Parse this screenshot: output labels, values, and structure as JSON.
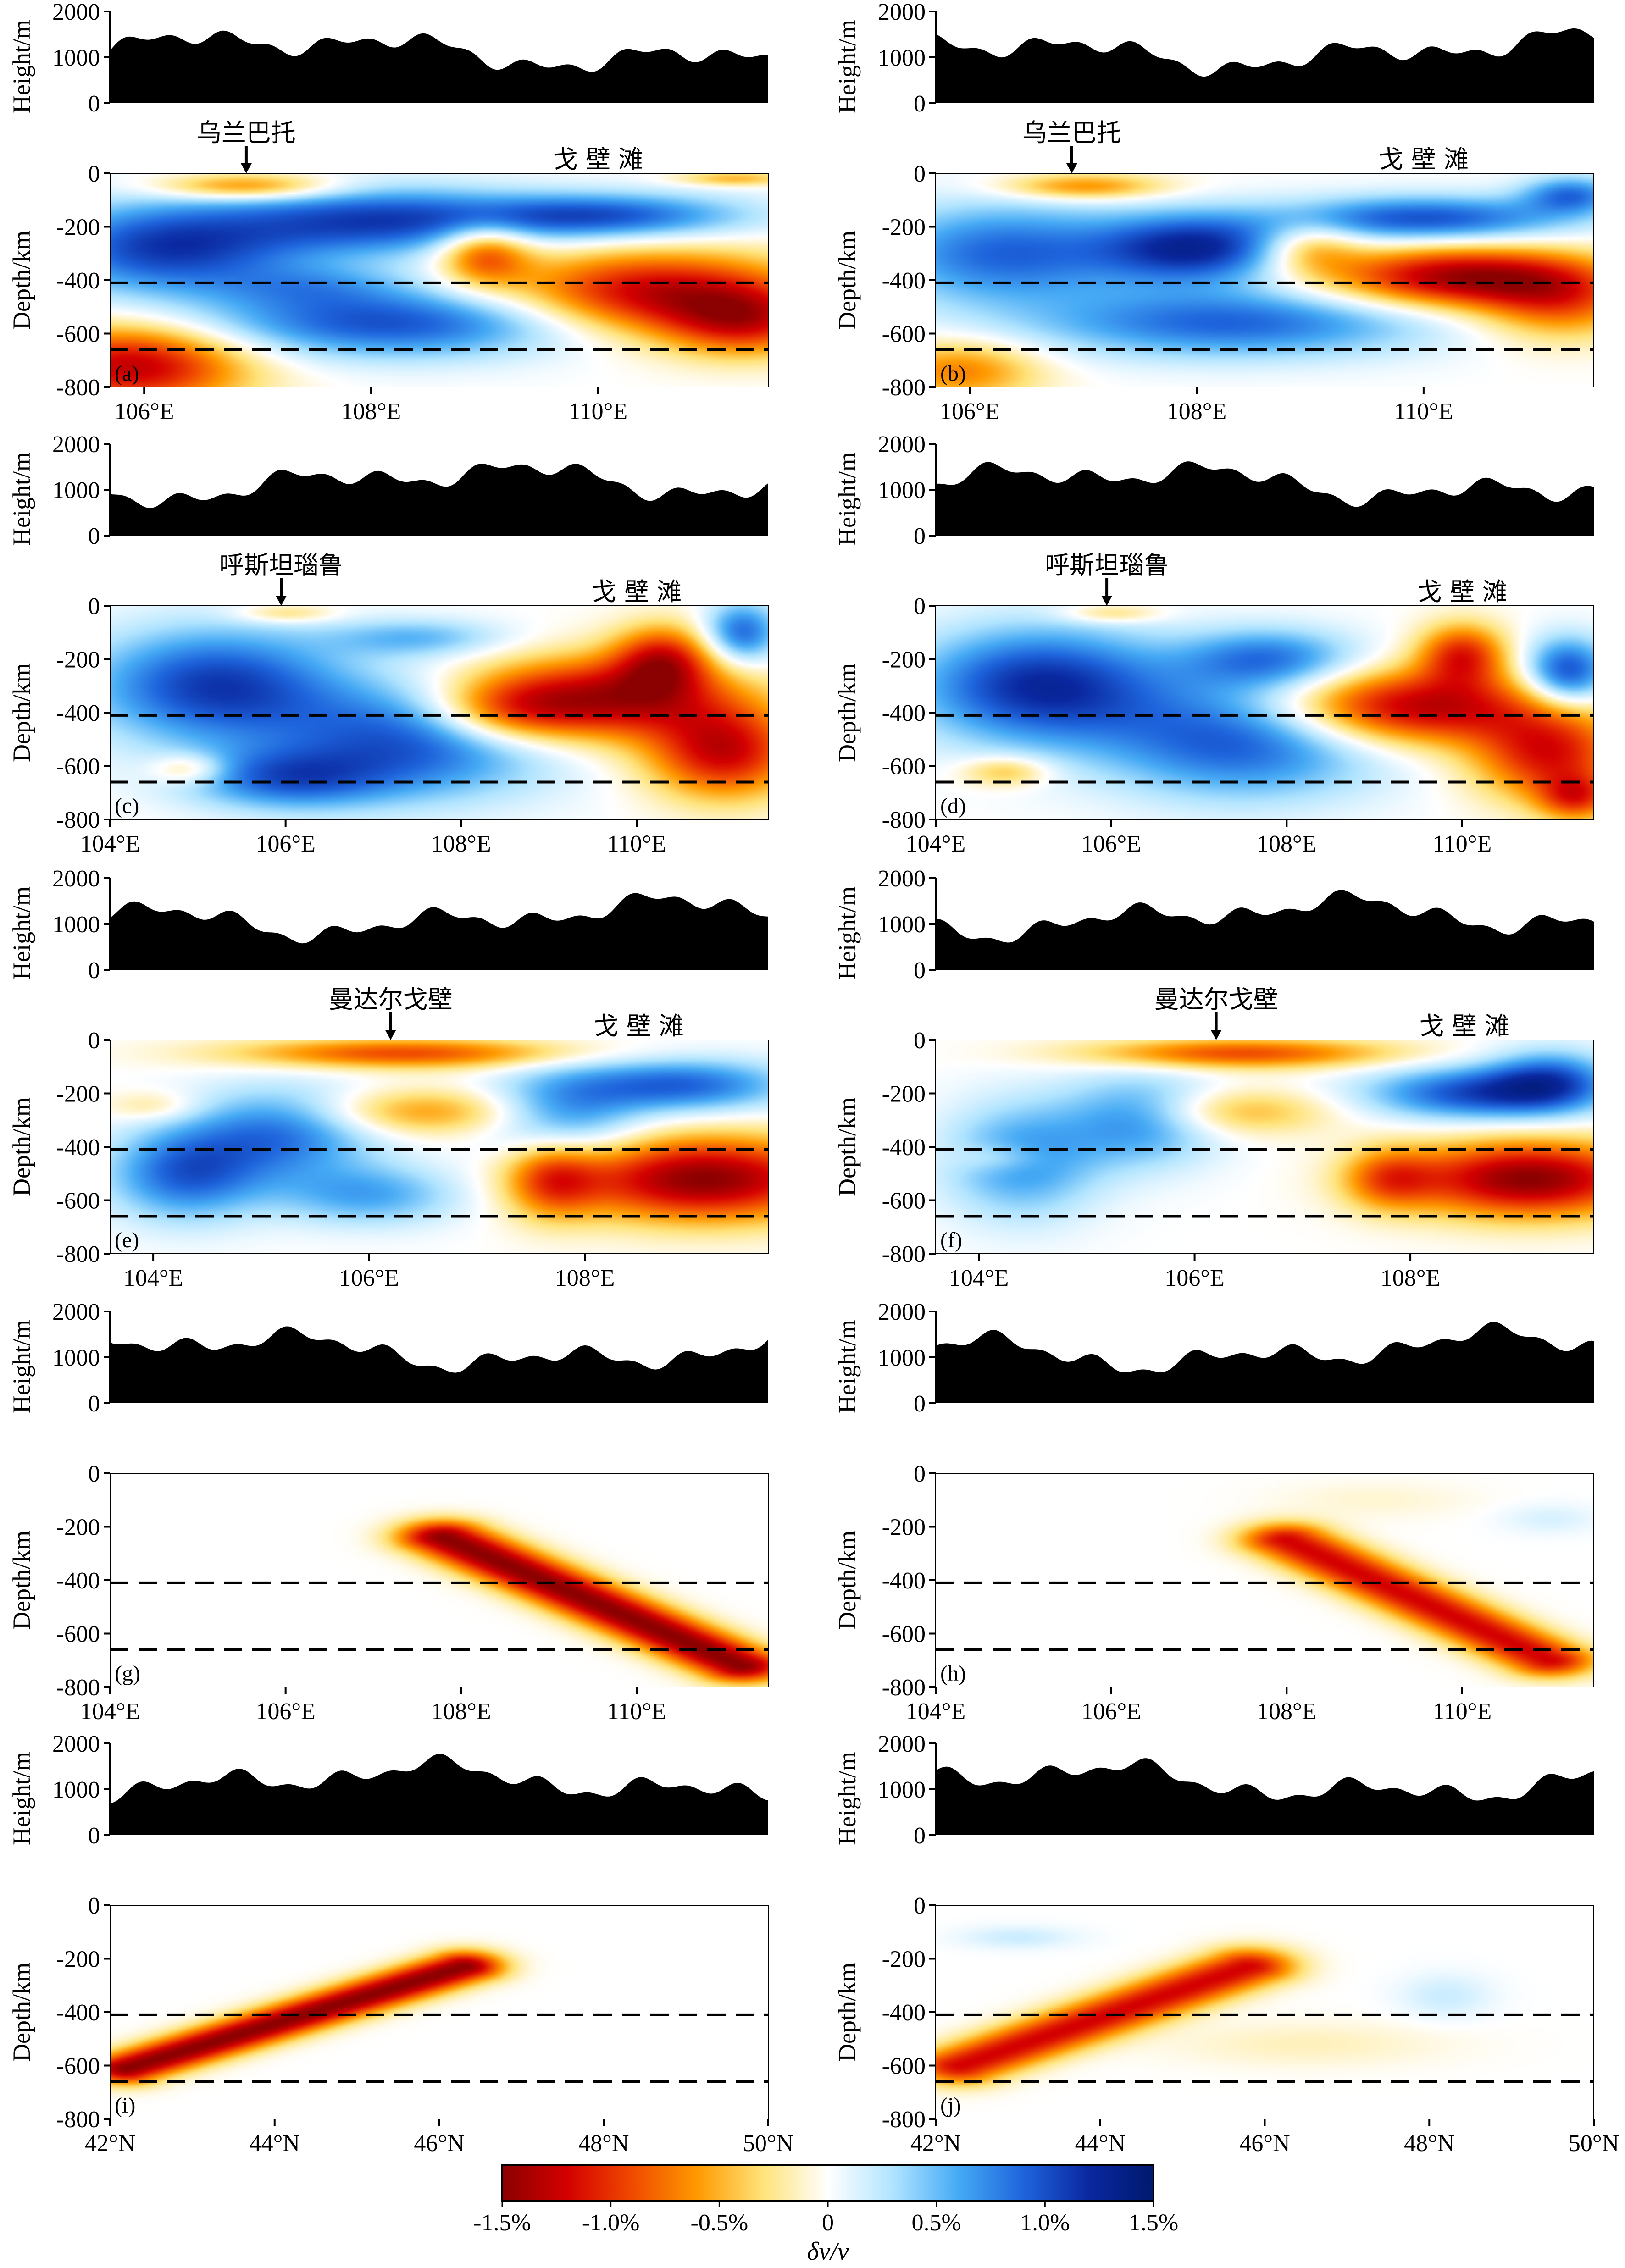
{
  "colorbar": {
    "ticks": [
      "-1.5%",
      "-1.0%",
      "-0.5%",
      "0",
      "0.5%",
      "1.0%",
      "1.5%"
    ],
    "label": "δv/v",
    "range": [
      -1.5,
      1.5
    ],
    "colors": [
      "#8b0000",
      "#d40000",
      "#f04a00",
      "#ff9a00",
      "#ffe37a",
      "#ffffff",
      "#b0e4ff",
      "#46aaf5",
      "#1e64dc",
      "#0a28a0",
      "#00196e"
    ]
  },
  "axes": {
    "height_ylabel": "Height/m",
    "height_ticks": [
      "2000",
      "1000",
      "0"
    ],
    "depth_ylabel": "Depth/km",
    "depth_ticks": [
      "0",
      "-200",
      "-400",
      "-600",
      "-800"
    ]
  },
  "chart_data": [
    {
      "type": "heatmap",
      "panel": "(a)",
      "row": 0,
      "col": 0,
      "xlim": [
        105.7,
        111.5
      ],
      "ylim": [
        -800,
        0
      ],
      "dashed_depths": [
        -410,
        -660
      ],
      "x_ticks": [
        {
          "v": 106,
          "t": "106°E"
        },
        {
          "v": 108,
          "t": "108°E"
        },
        {
          "v": 110,
          "t": "110°E"
        }
      ],
      "place_label": "乌兰巴托",
      "place_x": 106.9,
      "region_label": "戈 壁 滩",
      "region_x": 110.0,
      "anomalies": [
        {
          "x": 106.9,
          "z": -50,
          "sx": 0.55,
          "sz": 35,
          "a": -0.8
        },
        {
          "x": 105.9,
          "z": -720,
          "sx": 0.7,
          "sz": 110,
          "a": -1.3
        },
        {
          "x": 109.0,
          "z": -300,
          "sx": 0.28,
          "sz": 80,
          "a": -0.9
        },
        {
          "x": 110.5,
          "z": -450,
          "sx": 0.9,
          "sz": 110,
          "a": -1.3
        },
        {
          "x": 111.3,
          "z": -560,
          "sx": 0.5,
          "sz": 90,
          "a": -0.9
        },
        {
          "x": 111.2,
          "z": -20,
          "sx": 0.35,
          "sz": 20,
          "a": -0.5
        },
        {
          "x": 106.2,
          "z": -280,
          "sx": 0.8,
          "sz": 120,
          "a": 1.1
        },
        {
          "x": 108.0,
          "z": -180,
          "sx": 0.9,
          "sz": 90,
          "a": 1.0
        },
        {
          "x": 108.2,
          "z": -560,
          "sx": 1.2,
          "sz": 90,
          "a": 1.0
        },
        {
          "x": 110.0,
          "z": -160,
          "sx": 0.9,
          "sz": 60,
          "a": 1.0
        },
        {
          "x": 107.5,
          "z": -420,
          "sx": 0.6,
          "sz": 60,
          "a": 0.4
        }
      ]
    },
    {
      "type": "heatmap",
      "panel": "(b)",
      "row": 0,
      "col": 1,
      "xlim": [
        105.7,
        111.5
      ],
      "ylim": [
        -800,
        0
      ],
      "dashed_depths": [
        -410,
        -660
      ],
      "x_ticks": [
        {
          "v": 106,
          "t": "106°E"
        },
        {
          "v": 108,
          "t": "108°E"
        },
        {
          "v": 110,
          "t": "110°E"
        }
      ],
      "place_label": "乌兰巴托",
      "place_x": 106.9,
      "region_label": "戈 壁 滩",
      "region_x": 110.0,
      "anomalies": [
        {
          "x": 107.0,
          "z": -50,
          "sx": 0.5,
          "sz": 35,
          "a": -0.7
        },
        {
          "x": 105.9,
          "z": -740,
          "sx": 0.5,
          "sz": 80,
          "a": -0.7
        },
        {
          "x": 109.0,
          "z": -280,
          "sx": 0.3,
          "sz": 70,
          "a": -0.6
        },
        {
          "x": 110.3,
          "z": -390,
          "sx": 0.8,
          "sz": 80,
          "a": -1.4
        },
        {
          "x": 111.2,
          "z": -480,
          "sx": 0.5,
          "sz": 100,
          "a": -0.8
        },
        {
          "x": 106.3,
          "z": -300,
          "sx": 0.8,
          "sz": 130,
          "a": 0.9
        },
        {
          "x": 108.0,
          "z": -280,
          "sx": 0.6,
          "sz": 90,
          "a": 1.2
        },
        {
          "x": 108.3,
          "z": -560,
          "sx": 1.2,
          "sz": 90,
          "a": 0.9
        },
        {
          "x": 110.0,
          "z": -170,
          "sx": 0.9,
          "sz": 60,
          "a": 1.0
        },
        {
          "x": 111.3,
          "z": -80,
          "sx": 0.3,
          "sz": 50,
          "a": 0.8
        }
      ]
    },
    {
      "type": "heatmap",
      "panel": "(c)",
      "row": 1,
      "col": 0,
      "xlim": [
        104,
        111.5
      ],
      "ylim": [
        -800,
        0
      ],
      "dashed_depths": [
        -410,
        -660
      ],
      "x_ticks": [
        {
          "v": 104,
          "t": "104°E"
        },
        {
          "v": 106,
          "t": "106°E"
        },
        {
          "v": 108,
          "t": "108°E"
        },
        {
          "v": 110,
          "t": "110°E"
        }
      ],
      "place_label": "呼斯坦瑙鲁",
      "place_x": 105.95,
      "region_label": "戈 壁 滩",
      "region_x": 110.0,
      "anomalies": [
        {
          "x": 106.0,
          "z": -30,
          "sx": 0.4,
          "sz": 25,
          "a": -0.4
        },
        {
          "x": 109.5,
          "z": -350,
          "sx": 1.1,
          "sz": 110,
          "a": -1.4
        },
        {
          "x": 110.3,
          "z": -200,
          "sx": 0.4,
          "sz": 90,
          "a": -1.0
        },
        {
          "x": 111.0,
          "z": -550,
          "sx": 0.6,
          "sz": 120,
          "a": -1.2
        },
        {
          "x": 108.5,
          "z": -400,
          "sx": 0.6,
          "sz": 80,
          "a": -0.6
        },
        {
          "x": 104.9,
          "z": -610,
          "sx": 0.3,
          "sz": 40,
          "a": -0.5
        },
        {
          "x": 105.2,
          "z": -300,
          "sx": 1.0,
          "sz": 150,
          "a": 1.1
        },
        {
          "x": 107.5,
          "z": -500,
          "sx": 1.1,
          "sz": 150,
          "a": 1.0
        },
        {
          "x": 106.0,
          "z": -650,
          "sx": 0.8,
          "sz": 80,
          "a": 0.8
        },
        {
          "x": 107.5,
          "z": -120,
          "sx": 0.7,
          "sz": 50,
          "a": 0.5
        },
        {
          "x": 111.2,
          "z": -100,
          "sx": 0.3,
          "sz": 80,
          "a": 0.9
        }
      ]
    },
    {
      "type": "heatmap",
      "panel": "(d)",
      "row": 1,
      "col": 1,
      "xlim": [
        104,
        111.5
      ],
      "ylim": [
        -800,
        0
      ],
      "dashed_depths": [
        -410,
        -660
      ],
      "x_ticks": [
        {
          "v": 104,
          "t": "104°E"
        },
        {
          "v": 106,
          "t": "106°E"
        },
        {
          "v": 108,
          "t": "108°E"
        },
        {
          "v": 110,
          "t": "110°E"
        }
      ],
      "place_label": "呼斯坦瑙鲁",
      "place_x": 105.95,
      "region_label": "戈 壁 滩",
      "region_x": 110.0,
      "anomalies": [
        {
          "x": 106.0,
          "z": -30,
          "sx": 0.4,
          "sz": 25,
          "a": -0.4
        },
        {
          "x": 109.4,
          "z": -380,
          "sx": 1.1,
          "sz": 100,
          "a": -1.4
        },
        {
          "x": 110.0,
          "z": -180,
          "sx": 0.35,
          "sz": 80,
          "a": -1.0
        },
        {
          "x": 111.0,
          "z": -560,
          "sx": 0.6,
          "sz": 120,
          "a": -1.1
        },
        {
          "x": 111.3,
          "z": -720,
          "sx": 0.3,
          "sz": 60,
          "a": -0.8
        },
        {
          "x": 104.8,
          "z": -620,
          "sx": 0.35,
          "sz": 40,
          "a": -0.5
        },
        {
          "x": 105.2,
          "z": -300,
          "sx": 1.0,
          "sz": 150,
          "a": 1.2
        },
        {
          "x": 107.5,
          "z": -500,
          "sx": 1.1,
          "sz": 150,
          "a": 1.0
        },
        {
          "x": 107.8,
          "z": -200,
          "sx": 0.7,
          "sz": 80,
          "a": 0.8
        },
        {
          "x": 111.2,
          "z": -250,
          "sx": 0.35,
          "sz": 90,
          "a": 1.1
        }
      ]
    },
    {
      "type": "heatmap",
      "panel": "(e)",
      "row": 2,
      "col": 0,
      "xlim": [
        103.6,
        109.7
      ],
      "ylim": [
        -800,
        0
      ],
      "dashed_depths": [
        -410,
        -660
      ],
      "x_ticks": [
        {
          "v": 104,
          "t": "104°E"
        },
        {
          "v": 106,
          "t": "106°E"
        },
        {
          "v": 108,
          "t": "108°E"
        }
      ],
      "place_label": "曼达尔戈壁",
      "place_x": 106.2,
      "region_label": "戈 壁 滩",
      "region_x": 108.5,
      "anomalies": [
        {
          "x": 106.3,
          "z": -50,
          "sx": 1.1,
          "sz": 40,
          "a": -0.9
        },
        {
          "x": 106.5,
          "z": -270,
          "sx": 0.7,
          "sz": 60,
          "a": -0.6
        },
        {
          "x": 109.1,
          "z": -520,
          "sx": 0.9,
          "sz": 110,
          "a": -1.5
        },
        {
          "x": 107.7,
          "z": -520,
          "sx": 0.3,
          "sz": 100,
          "a": -0.8
        },
        {
          "x": 104.0,
          "z": -250,
          "sx": 0.3,
          "sz": 40,
          "a": -0.3
        },
        {
          "x": 104.3,
          "z": -500,
          "sx": 0.5,
          "sz": 120,
          "a": 0.9
        },
        {
          "x": 105.2,
          "z": -350,
          "sx": 0.6,
          "sz": 120,
          "a": 0.8
        },
        {
          "x": 107.8,
          "z": -280,
          "sx": 0.5,
          "sz": 120,
          "a": 0.7
        },
        {
          "x": 108.9,
          "z": -170,
          "sx": 0.7,
          "sz": 70,
          "a": 0.9
        },
        {
          "x": 106.0,
          "z": -580,
          "sx": 0.6,
          "sz": 80,
          "a": 0.6
        }
      ]
    },
    {
      "type": "heatmap",
      "panel": "(f)",
      "row": 2,
      "col": 1,
      "xlim": [
        103.6,
        109.7
      ],
      "ylim": [
        -800,
        0
      ],
      "dashed_depths": [
        -410,
        -660
      ],
      "x_ticks": [
        {
          "v": 104,
          "t": "104°E"
        },
        {
          "v": 106,
          "t": "106°E"
        },
        {
          "v": 108,
          "t": "108°E"
        }
      ],
      "place_label": "曼达尔戈壁",
      "place_x": 106.2,
      "region_label": "戈 壁 滩",
      "region_x": 108.5,
      "anomalies": [
        {
          "x": 106.4,
          "z": -50,
          "sx": 1.0,
          "sz": 40,
          "a": -0.9
        },
        {
          "x": 106.4,
          "z": -270,
          "sx": 0.6,
          "sz": 60,
          "a": -0.5
        },
        {
          "x": 109.1,
          "z": -520,
          "sx": 0.8,
          "sz": 100,
          "a": -1.5
        },
        {
          "x": 107.8,
          "z": -520,
          "sx": 0.3,
          "sz": 80,
          "a": -0.7
        },
        {
          "x": 104.2,
          "z": -440,
          "sx": 0.3,
          "sz": 40,
          "a": -0.3
        },
        {
          "x": 104.4,
          "z": -450,
          "sx": 0.5,
          "sz": 150,
          "a": 0.7
        },
        {
          "x": 105.5,
          "z": -300,
          "sx": 0.5,
          "sz": 120,
          "a": 0.7
        },
        {
          "x": 108.6,
          "z": -200,
          "sx": 0.7,
          "sz": 70,
          "a": 1.0
        },
        {
          "x": 109.3,
          "z": -150,
          "sx": 0.4,
          "sz": 80,
          "a": 0.8
        }
      ]
    },
    {
      "type": "heatmap",
      "panel": "(g)",
      "row": 3,
      "col": 0,
      "xlim": [
        104,
        111.5
      ],
      "ylim": [
        -800,
        0
      ],
      "dashed_depths": [
        -410,
        -660
      ],
      "x_ticks": [
        {
          "v": 104,
          "t": "104°E"
        },
        {
          "v": 106,
          "t": "106°E"
        },
        {
          "v": 108,
          "t": "108°E"
        },
        {
          "v": 110,
          "t": "110°E"
        }
      ],
      "slab": {
        "x0": 107.8,
        "z0": -240,
        "x1": 111.2,
        "z1": -720,
        "w": 0.55,
        "a": -1.5
      }
    },
    {
      "type": "heatmap",
      "panel": "(h)",
      "row": 3,
      "col": 1,
      "xlim": [
        104,
        111.5
      ],
      "ylim": [
        -800,
        0
      ],
      "dashed_depths": [
        -410,
        -660
      ],
      "x_ticks": [
        {
          "v": 104,
          "t": "104°E"
        },
        {
          "v": 106,
          "t": "106°E"
        },
        {
          "v": 108,
          "t": "108°E"
        },
        {
          "v": 110,
          "t": "110°E"
        }
      ],
      "slab": {
        "x0": 108.0,
        "z0": -250,
        "x1": 111.0,
        "z1": -700,
        "w": 0.55,
        "a": -1.2
      },
      "anomalies": [
        {
          "x": 111.0,
          "z": -170,
          "sx": 0.4,
          "sz": 40,
          "a": 0.15
        },
        {
          "x": 109.0,
          "z": -100,
          "sx": 0.8,
          "sz": 50,
          "a": -0.1
        }
      ]
    },
    {
      "type": "heatmap",
      "panel": "(i)",
      "row": 4,
      "col": 0,
      "xlim": [
        42,
        50
      ],
      "ylim": [
        -800,
        0
      ],
      "dashed_depths": [
        -410,
        -660
      ],
      "x_ticks": [
        {
          "v": 42,
          "t": "42°N"
        },
        {
          "v": 44,
          "t": "44°N"
        },
        {
          "v": 46,
          "t": "46°N"
        },
        {
          "v": 48,
          "t": "48°N"
        },
        {
          "v": 50,
          "t": "50°N"
        }
      ],
      "slab": {
        "x0": 42.2,
        "z0": -610,
        "x1": 46.3,
        "z1": -230,
        "w": 0.5,
        "a": -1.5
      }
    },
    {
      "type": "heatmap",
      "panel": "(j)",
      "row": 4,
      "col": 1,
      "xlim": [
        42,
        50
      ],
      "ylim": [
        -800,
        0
      ],
      "dashed_depths": [
        -410,
        -660
      ],
      "x_ticks": [
        {
          "v": 42,
          "t": "42°N"
        },
        {
          "v": 44,
          "t": "44°N"
        },
        {
          "v": 46,
          "t": "46°N"
        },
        {
          "v": 48,
          "t": "48°N"
        },
        {
          "v": 50,
          "t": "50°N"
        }
      ],
      "slab": {
        "x0": 42.3,
        "z0": -600,
        "x1": 45.8,
        "z1": -230,
        "w": 0.6,
        "a": -1.2
      },
      "anomalies": [
        {
          "x": 43.0,
          "z": -120,
          "sx": 0.5,
          "sz": 30,
          "a": 0.2
        },
        {
          "x": 48.2,
          "z": -340,
          "sx": 0.4,
          "sz": 60,
          "a": 0.2
        },
        {
          "x": 46.5,
          "z": -520,
          "sx": 1.2,
          "sz": 60,
          "a": -0.15
        }
      ]
    }
  ]
}
